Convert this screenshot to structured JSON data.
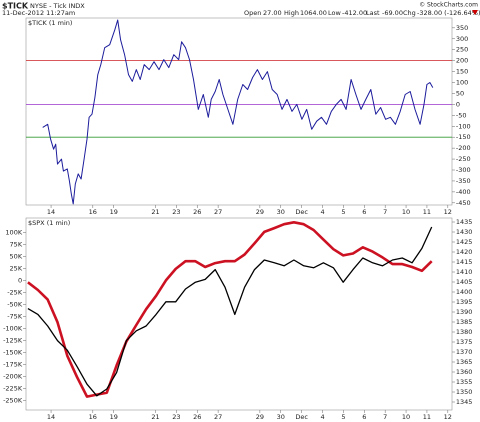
{
  "header": {
    "symbol": "$TICK",
    "description": "NYSE - Tick INDX",
    "datetime": "11-Dec-2012 11:27am",
    "quote": [
      {
        "label": "Open",
        "value": "27.00"
      },
      {
        "label": "High",
        "value": "1064.00"
      },
      {
        "label": "Low",
        "value": "-412.00"
      },
      {
        "label": "Last",
        "value": "-69.00"
      },
      {
        "label": "Chg",
        "value": "-328.00 (-126.64%)"
      }
    ],
    "copyright": "© StockCharts.com"
  },
  "chart_data": [
    {
      "type": "line",
      "title": "$TICK (1 min)",
      "y_axis_side": "right",
      "xlim": [
        -0.2,
        20.2
      ],
      "xticks": [
        {
          "value": 1,
          "label": "14"
        },
        {
          "value": 3,
          "label": "16"
        },
        {
          "value": 4,
          "label": "19"
        },
        {
          "value": 6,
          "label": "21"
        },
        {
          "value": 7,
          "label": "23"
        },
        {
          "value": 8,
          "label": "26"
        },
        {
          "value": 9,
          "label": "27"
        },
        {
          "value": 11,
          "label": "29"
        },
        {
          "value": 12,
          "label": "30"
        },
        {
          "value": 13,
          "label": "Dec"
        },
        {
          "value": 14,
          "label": "4"
        },
        {
          "value": 15,
          "label": "5"
        },
        {
          "value": 16,
          "label": "6"
        },
        {
          "value": 17,
          "label": "7"
        },
        {
          "value": 18,
          "label": "10"
        },
        {
          "value": 19,
          "label": "11"
        },
        {
          "value": 20,
          "label": "12"
        }
      ],
      "ylim": [
        -460,
        395
      ],
      "yticks": [
        350,
        300,
        250,
        200,
        150,
        100,
        50,
        0,
        -50,
        -100,
        -150,
        -200,
        -250,
        -300,
        -350,
        -400,
        -450
      ],
      "hlines": [
        {
          "value": 200,
          "color": "#cc2222"
        },
        {
          "value": 0,
          "color": "#9933cc"
        },
        {
          "value": -150,
          "color": "#339933"
        }
      ],
      "x": [
        0.6,
        0.84,
        0.98,
        1.12,
        1.22,
        1.31,
        1.5,
        1.59,
        1.78,
        1.88,
        1.97,
        2.06,
        2.16,
        2.3,
        2.44,
        2.58,
        2.72,
        2.82,
        2.96,
        3.1,
        3.24,
        3.38,
        3.57,
        3.81,
        4.05,
        4.19,
        4.33,
        4.52,
        4.71,
        4.89,
        5.08,
        5.27,
        5.46,
        5.7,
        5.93,
        6.17,
        6.4,
        6.64,
        6.88,
        7.11,
        7.25,
        7.44,
        7.63,
        7.82,
        8.05,
        8.29,
        8.53,
        8.67,
        8.86,
        9.05,
        9.23,
        9.47,
        9.71,
        9.94,
        10.18,
        10.41,
        10.65,
        10.88,
        11.12,
        11.36,
        11.59,
        11.83,
        12.06,
        12.3,
        12.54,
        12.77,
        13.01,
        13.24,
        13.48,
        13.72,
        13.95,
        14.19,
        14.42,
        14.66,
        14.89,
        15.13,
        15.37,
        15.6,
        15.84,
        16.07,
        16.31,
        16.55,
        16.78,
        17.02,
        17.25,
        17.49,
        17.72,
        17.96,
        18.2,
        18.43,
        18.67,
        18.86,
        19.0,
        19.14,
        19.28
      ],
      "series": [
        {
          "color": "#1c1c9c",
          "values": [
            -105,
            -91,
            -159,
            -205,
            -182,
            -273,
            -250,
            -305,
            -295,
            -350,
            -409,
            -455,
            -364,
            -318,
            -341,
            -250,
            -159,
            -59,
            -45,
            32,
            136,
            182,
            259,
            273,
            341,
            386,
            295,
            227,
            136,
            105,
            159,
            114,
            182,
            159,
            195,
            159,
            205,
            168,
            227,
            205,
            286,
            259,
            205,
            114,
            -23,
            45,
            -59,
            23,
            59,
            114,
            45,
            -23,
            -91,
            23,
            91,
            68,
            123,
            159,
            114,
            150,
            68,
            45,
            -23,
            23,
            -32,
            0,
            -68,
            -23,
            -114,
            -77,
            -59,
            -91,
            -32,
            0,
            23,
            -23,
            114,
            45,
            -23,
            23,
            68,
            -45,
            -14,
            -68,
            -59,
            -91,
            -32,
            45,
            59,
            -23,
            -91,
            0,
            91,
            100,
            77
          ]
        }
      ]
    },
    {
      "type": "line",
      "title": "$SPX (1 min)",
      "y_axis_side": "left",
      "xlim": [
        -0.2,
        20.2
      ],
      "xticks": [
        {
          "value": 1,
          "label": "14"
        },
        {
          "value": 3,
          "label": "16"
        },
        {
          "value": 4,
          "label": "19"
        },
        {
          "value": 6,
          "label": "21"
        },
        {
          "value": 7,
          "label": "23"
        },
        {
          "value": 8,
          "label": "26"
        },
        {
          "value": 9,
          "label": "27"
        },
        {
          "value": 11,
          "label": "29"
        },
        {
          "value": 12,
          "label": "30"
        },
        {
          "value": 13,
          "label": "Dec"
        },
        {
          "value": 14,
          "label": "4"
        },
        {
          "value": 15,
          "label": "5"
        },
        {
          "value": 16,
          "label": "6"
        },
        {
          "value": 17,
          "label": "7"
        },
        {
          "value": 18,
          "label": "10"
        },
        {
          "value": 19,
          "label": "11"
        },
        {
          "value": 20,
          "label": "12"
        }
      ],
      "ylim": [
        -270000,
        130000
      ],
      "yticks": [
        {
          "value": 100000,
          "label": "100K"
        },
        {
          "value": 75000,
          "label": "75K"
        },
        {
          "value": 50000,
          "label": "50K"
        },
        {
          "value": 25000,
          "label": "25K"
        },
        0,
        {
          "value": -25000,
          "label": "-25K"
        },
        {
          "value": -50000,
          "label": "-50K"
        },
        {
          "value": -75000,
          "label": "-75K"
        },
        {
          "value": -100000,
          "label": "-100K"
        },
        {
          "value": -125000,
          "label": "-125K"
        },
        {
          "value": -150000,
          "label": "-150K"
        },
        {
          "value": -175000,
          "label": "-175K"
        },
        {
          "value": -200000,
          "label": "-200K"
        },
        {
          "value": -225000,
          "label": "-225K"
        },
        {
          "value": -250000,
          "label": "-250K"
        }
      ],
      "y2lim": [
        1341,
        1437
      ],
      "y2ticks": [
        1435,
        1430,
        1425,
        1420,
        1415,
        1410,
        1405,
        1400,
        1395,
        1390,
        1385,
        1380,
        1375,
        1370,
        1365,
        1360,
        1355,
        1350,
        1345
      ],
      "x": [
        -0.11,
        0.37,
        0.84,
        1.31,
        1.78,
        2.25,
        2.72,
        3.19,
        3.67,
        4.14,
        4.61,
        5.08,
        5.55,
        6.03,
        6.5,
        6.97,
        7.44,
        7.91,
        8.38,
        8.86,
        9.33,
        9.8,
        10.27,
        10.74,
        11.21,
        11.69,
        12.16,
        12.63,
        13.1,
        13.57,
        14.04,
        14.52,
        14.99,
        15.46,
        15.93,
        16.4,
        16.87,
        17.35,
        17.82,
        18.29,
        18.76,
        19.23
      ],
      "series": [
        {
          "color": "#cc1122",
          "width": 2.6,
          "values": [
            -4000,
            -20000,
            -40000,
            -87000,
            -157000,
            -202000,
            -242000,
            -238000,
            -234000,
            -177000,
            -127000,
            -93000,
            -60000,
            -32000,
            0,
            24000,
            40000,
            40000,
            28000,
            36000,
            40000,
            40000,
            54000,
            77000,
            101000,
            109000,
            117000,
            121000,
            117000,
            105000,
            85000,
            65000,
            52000,
            56000,
            69000,
            60000,
            48000,
            34000,
            34000,
            28000,
            20000,
            40000
          ]
        },
        {
          "color": "#000000",
          "width": 1.3,
          "axis": "y2",
          "values": [
            1391.7,
            1388.8,
            1383.0,
            1375.7,
            1370.9,
            1362.6,
            1353.9,
            1348.1,
            1351.5,
            1359.7,
            1375.7,
            1380.6,
            1383.0,
            1388.8,
            1395.1,
            1395.1,
            1401.5,
            1404.9,
            1406.3,
            1411.2,
            1402.4,
            1388.8,
            1402.4,
            1411.2,
            1416.0,
            1414.6,
            1413.1,
            1416.0,
            1413.1,
            1412.1,
            1414.6,
            1412.1,
            1404.9,
            1411.2,
            1417.0,
            1414.6,
            1413.1,
            1416.0,
            1417.0,
            1414.6,
            1421.8,
            1432.5
          ]
        }
      ]
    }
  ]
}
